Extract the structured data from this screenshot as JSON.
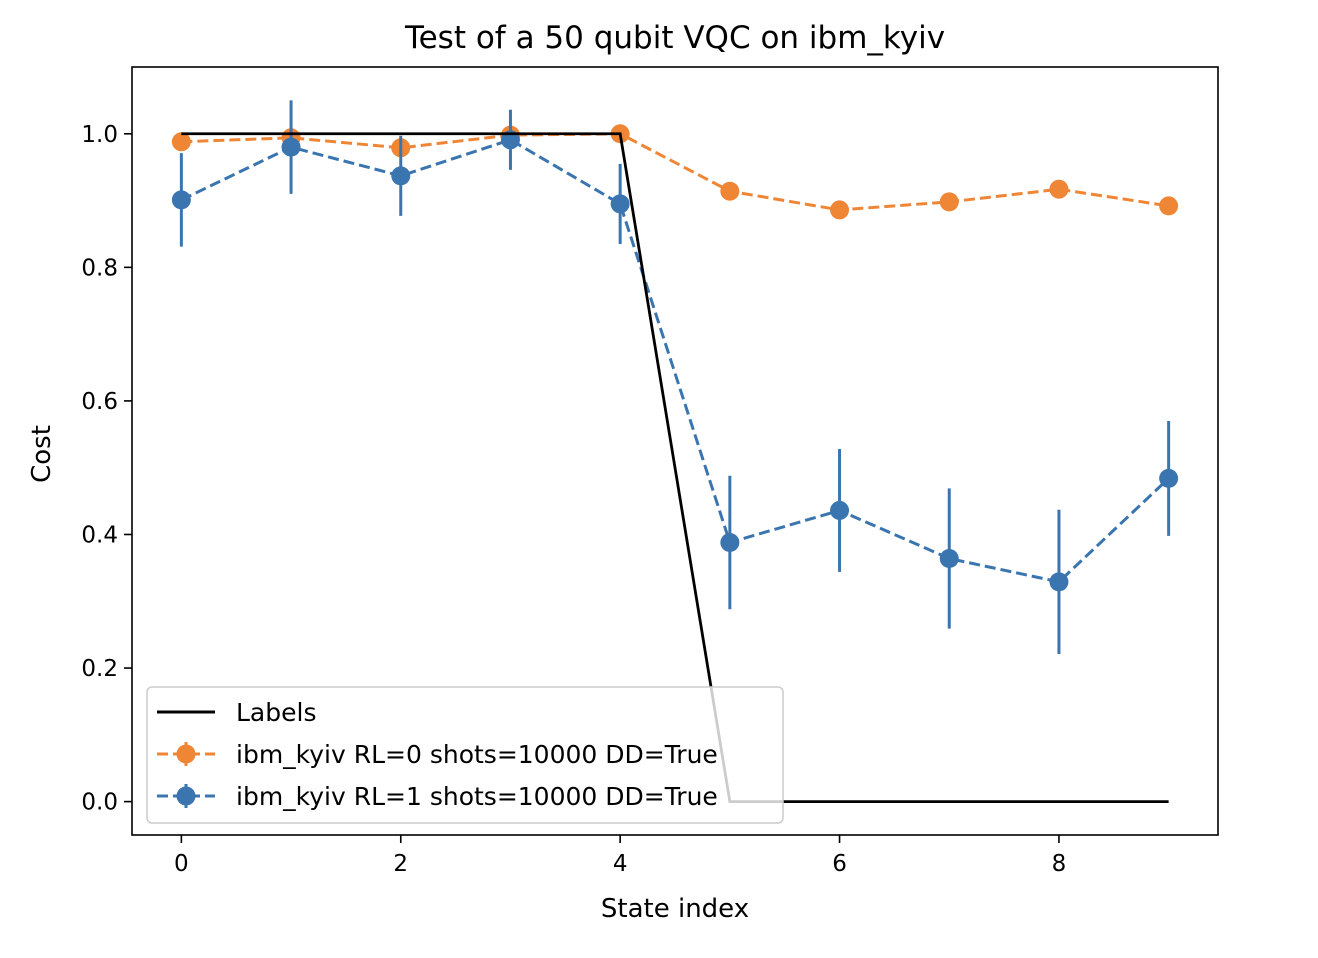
{
  "chart_data": {
    "type": "line",
    "title": "Test of a 50 qubit VQC on ibm_kyiv",
    "xlabel": "State index",
    "ylabel": "Cost",
    "xlim": [
      -0.45,
      9.45
    ],
    "ylim": [
      -0.05,
      1.1
    ],
    "xticks": [
      0,
      2,
      4,
      6,
      8
    ],
    "yticks": [
      0.0,
      0.2,
      0.4,
      0.6,
      0.8,
      1.0
    ],
    "xtick_labels": [
      "0",
      "2",
      "4",
      "6",
      "8"
    ],
    "ytick_labels": [
      "0.0",
      "0.2",
      "0.4",
      "0.6",
      "0.8",
      "1.0"
    ],
    "grid": false,
    "legend_position": "lower-left",
    "x": [
      0,
      1,
      2,
      3,
      4,
      5,
      6,
      7,
      8,
      9
    ],
    "series": [
      {
        "name": "Labels",
        "color": "#000000",
        "style": "solid",
        "marker": "none",
        "values": [
          1,
          1,
          1,
          1,
          1,
          0,
          0,
          0,
          0,
          0
        ]
      },
      {
        "name": "ibm_kyiv RL=0 shots=10000 DD=True",
        "color": "#ef8636",
        "style": "dashed",
        "marker": "circle",
        "values": [
          0.988,
          0.994,
          0.979,
          0.998,
          1.0,
          0.914,
          0.886,
          0.898,
          0.917,
          0.892
        ],
        "errors": [
          0.005,
          0.005,
          0.005,
          0.004,
          0.003,
          0.005,
          0.005,
          0.005,
          0.005,
          0.005
        ]
      },
      {
        "name": "ibm_kyiv RL=1 shots=10000 DD=True",
        "color": "#3b75af",
        "style": "dashed",
        "marker": "circle",
        "values": [
          0.901,
          0.98,
          0.937,
          0.991,
          0.895,
          0.388,
          0.436,
          0.364,
          0.329,
          0.484
        ],
        "errors": [
          0.07,
          0.07,
          0.06,
          0.045,
          0.06,
          0.1,
          0.092,
          0.105,
          0.108,
          0.086
        ]
      }
    ]
  }
}
